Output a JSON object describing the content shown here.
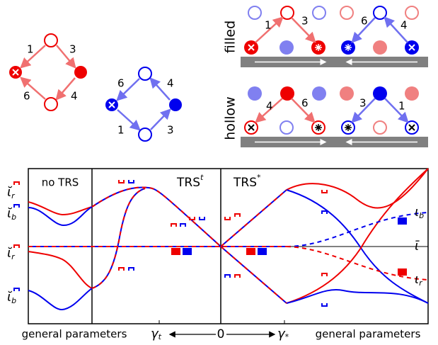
{
  "diamonds": {
    "red": {
      "labels": [
        "1",
        "3",
        "6",
        "4"
      ]
    },
    "blue": {
      "labels": [
        "6",
        "4",
        "1",
        "3"
      ]
    }
  },
  "panels": {
    "filled": {
      "label": "filled",
      "labels": [
        "1",
        "3",
        "6",
        "4"
      ]
    },
    "hollow": {
      "label": "hollow",
      "labels": [
        "4",
        "6",
        "3",
        "1"
      ]
    }
  },
  "plot": {
    "regions": [
      {
        "text": "no TRS"
      },
      {
        "text": "TRS",
        "sup": "t"
      },
      {
        "text": "TRS",
        "sup": "*"
      }
    ],
    "left_labels": [
      {
        "symbol": "ῐ",
        "sub": "r"
      },
      {
        "symbol": "ῐ",
        "sub": "b"
      },
      {
        "symbol": "ῐ",
        "sub": "r"
      },
      {
        "symbol": "ῐ",
        "sub": "b"
      }
    ],
    "right_labels": [
      {
        "symbol": "ι",
        "sub": "b"
      },
      {
        "symbol": "ῑ"
      },
      {
        "symbol": "ι",
        "sub": "r"
      }
    ],
    "bottom": {
      "left": "general parameters",
      "gamma_t": {
        "symbol": "γ",
        "sub": "t"
      },
      "zero": "0",
      "gamma_star": {
        "symbol": "γ",
        "sub": "*"
      },
      "right": "general parameters"
    }
  }
}
